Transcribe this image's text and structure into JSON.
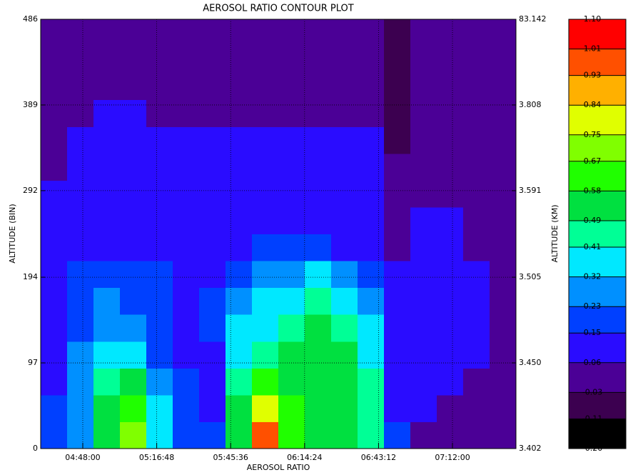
{
  "chart_data": {
    "type": "contour",
    "title": "AEROSOL RATIO CONTOUR PLOT",
    "x_label": "AEROSOL RATIO",
    "y_label": "ALTITUDE (BIN)",
    "y2_label": "ALTITUDE (KM)",
    "xlim": [
      16296,
      27404
    ],
    "xticks": [
      {
        "value": 17280,
        "label": "04:48:00"
      },
      {
        "value": 19008,
        "label": "05:16:48"
      },
      {
        "value": 20736,
        "label": "05:45:36"
      },
      {
        "value": 22464,
        "label": "06:14:24"
      },
      {
        "value": 24192,
        "label": "06:43:12"
      },
      {
        "value": 25920,
        "label": "07:12:00"
      }
    ],
    "ylim": [
      0,
      486
    ],
    "yticks": [
      0,
      97,
      194,
      292,
      389,
      486
    ],
    "y2ticks": [
      3.402,
      {
        "value": 3.45,
        "label": "3.450"
      },
      3.505,
      3.591,
      3.808,
      83.142
    ],
    "grid": true,
    "levels": [
      {
        "value": -0.2,
        "label": "-0.20"
      },
      -0.11,
      -0.03,
      0.06,
      0.15,
      0.23,
      0.32,
      0.41,
      0.49,
      0.58,
      0.67,
      0.75,
      0.84,
      0.93,
      1.01,
      {
        "value": 1.1,
        "label": "1.10"
      }
    ],
    "colors": [
      "#000000",
      "#3c0050",
      "#4b0096",
      "#2a0cff",
      "#0040ff",
      "#0090ff",
      "#00e8ff",
      "#00ff96",
      "#00e040",
      "#20ff00",
      "#80ff00",
      "#e0ff00",
      "#ffb000",
      "#ff5000",
      "#ff0000"
    ],
    "x": [
      16605,
      17222,
      17839,
      18456,
      19073,
      19690,
      20307,
      20924,
      21541,
      22158,
      22775,
      23392,
      24009,
      24627,
      25244,
      25861,
      26478,
      27095
    ],
    "y": [
      15.2,
      45.6,
      75.9,
      106.3,
      136.7,
      167.1,
      197.4,
      227.8,
      258.2,
      288.6,
      318.9,
      349.3,
      379.7,
      410.1,
      440.4,
      470.8
    ],
    "z": [
      [
        0.15,
        0.3,
        0.5,
        0.7,
        0.4,
        0.2,
        0.15,
        0.5,
        0.95,
        0.6,
        0.55,
        0.5,
        0.45,
        0.15,
        0.05,
        0.05,
        0.0,
        0.0
      ],
      [
        0.15,
        0.3,
        0.5,
        0.62,
        0.35,
        0.2,
        0.12,
        0.5,
        0.8,
        0.6,
        0.55,
        0.55,
        0.45,
        0.12,
        0.1,
        0.05,
        0.05,
        0.0
      ],
      [
        0.12,
        0.3,
        0.45,
        0.5,
        0.3,
        0.15,
        0.12,
        0.45,
        0.6,
        0.55,
        0.55,
        0.5,
        0.45,
        0.12,
        0.1,
        0.1,
        0.05,
        0.05
      ],
      [
        0.12,
        0.25,
        0.35,
        0.35,
        0.2,
        0.12,
        0.12,
        0.4,
        0.45,
        0.5,
        0.55,
        0.5,
        0.4,
        0.1,
        0.1,
        0.08,
        0.08,
        0.05
      ],
      [
        0.12,
        0.22,
        0.3,
        0.28,
        0.15,
        0.12,
        0.15,
        0.35,
        0.4,
        0.45,
        0.5,
        0.45,
        0.35,
        0.1,
        0.1,
        0.08,
        0.08,
        0.05
      ],
      [
        0.12,
        0.2,
        0.25,
        0.22,
        0.15,
        0.12,
        0.15,
        0.3,
        0.35,
        0.4,
        0.45,
        0.4,
        0.28,
        0.1,
        0.1,
        0.08,
        0.08,
        0.05
      ],
      [
        0.1,
        0.18,
        0.2,
        0.2,
        0.15,
        0.12,
        0.12,
        0.2,
        0.3,
        0.3,
        0.33,
        0.25,
        0.15,
        0.08,
        0.1,
        0.08,
        0.08,
        0.05
      ],
      [
        0.1,
        0.12,
        0.12,
        0.12,
        0.12,
        0.1,
        0.1,
        0.12,
        0.15,
        0.15,
        0.15,
        0.12,
        0.12,
        0.05,
        0.08,
        0.08,
        0.05,
        0.05
      ],
      [
        0.08,
        0.12,
        0.12,
        0.12,
        0.12,
        0.1,
        0.1,
        0.12,
        0.12,
        0.12,
        0.12,
        0.12,
        0.12,
        0.05,
        0.08,
        0.08,
        0.05,
        0.05
      ],
      [
        0.08,
        0.1,
        0.12,
        0.12,
        0.12,
        0.1,
        0.1,
        0.1,
        0.12,
        0.12,
        0.12,
        0.1,
        0.1,
        0.0,
        0.05,
        0.05,
        0.05,
        0.05
      ],
      [
        0.0,
        0.1,
        0.12,
        0.12,
        0.12,
        0.1,
        0.1,
        0.1,
        0.12,
        0.12,
        0.1,
        0.1,
        0.1,
        0.0,
        0.02,
        0.02,
        0.02,
        0.02
      ],
      [
        0.0,
        0.1,
        0.12,
        0.1,
        0.1,
        0.1,
        0.08,
        0.1,
        0.1,
        0.1,
        0.1,
        0.1,
        0.08,
        -0.05,
        0.0,
        0.0,
        0.0,
        0.0
      ],
      [
        0.0,
        0.02,
        0.08,
        0.1,
        0.02,
        0.0,
        0.0,
        0.0,
        0.0,
        0.0,
        0.0,
        0.0,
        0.0,
        -0.07,
        0.0,
        0.0,
        0.0,
        0.0
      ],
      [
        0.0,
        0.0,
        0.0,
        0.0,
        0.0,
        0.0,
        0.0,
        0.0,
        0.0,
        0.0,
        0.0,
        0.0,
        0.0,
        -0.07,
        0.0,
        0.0,
        0.0,
        0.0
      ],
      [
        0.0,
        0.0,
        0.0,
        0.0,
        0.0,
        0.0,
        0.0,
        0.0,
        0.0,
        0.0,
        0.0,
        0.0,
        0.0,
        -0.1,
        0.0,
        0.0,
        0.0,
        0.0
      ],
      [
        0.0,
        0.0,
        0.0,
        0.0,
        0.0,
        0.0,
        0.0,
        0.0,
        0.0,
        0.0,
        0.0,
        0.0,
        0.0,
        -0.1,
        0.0,
        0.0,
        0.0,
        0.0
      ]
    ]
  }
}
